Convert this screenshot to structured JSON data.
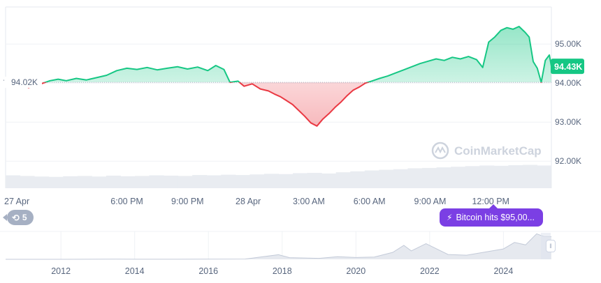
{
  "chart_data": [
    {
      "type": "area",
      "baseline": 94.02,
      "baseline_label": "94.02K",
      "current_label": "94.43K",
      "y_ticks": [
        "95.00K",
        "94.00K",
        "93.00K",
        "92.00K"
      ],
      "y_tick_values": [
        95.0,
        94.0,
        93.0,
        92.0
      ],
      "ylim": [
        91.45,
        95.95
      ],
      "x_ticks": [
        "27 Apr",
        "6:00 PM",
        "9:00 PM",
        "28 Apr",
        "3:00 AM",
        "6:00 AM",
        "9:00 AM",
        "12:00 PM"
      ],
      "x_tick_values": [
        12,
        18,
        21,
        24,
        27,
        30,
        33,
        36
      ],
      "xlim": [
        12,
        39
      ],
      "series": [
        {
          "x": [
            13.1,
            13.4,
            13.8,
            14.2,
            14.6,
            15.0,
            15.5,
            16.0,
            16.5,
            17.0,
            17.5,
            18.0,
            18.5,
            19.0,
            19.5,
            20.0,
            20.5,
            21.0,
            21.5,
            22.0,
            22.4,
            22.8,
            23.1,
            23.5,
            23.8,
            24.2,
            24.6,
            25.0,
            25.3,
            25.6,
            25.9,
            26.2,
            26.5,
            26.8,
            27.1,
            27.4,
            27.7,
            28.0,
            28.3,
            28.6,
            28.9,
            29.2,
            29.5,
            29.8,
            30.1,
            30.5,
            30.9,
            31.3,
            31.7,
            32.1,
            32.5,
            32.9,
            33.3,
            33.7,
            34.1,
            34.5,
            34.9,
            35.3,
            35.6,
            35.9,
            36.2,
            36.5,
            36.8,
            37.1,
            37.4,
            37.7,
            37.9,
            38.1,
            38.3,
            38.5,
            38.7,
            38.9,
            39.0
          ],
          "y": [
            93.88,
            93.92,
            93.99,
            94.06,
            94.1,
            94.06,
            94.12,
            94.08,
            94.14,
            94.2,
            94.32,
            94.38,
            94.35,
            94.4,
            94.34,
            94.38,
            94.42,
            94.36,
            94.41,
            94.32,
            94.45,
            94.35,
            94.02,
            94.05,
            93.92,
            93.98,
            93.85,
            93.8,
            93.72,
            93.65,
            93.55,
            93.45,
            93.3,
            93.15,
            92.98,
            92.9,
            93.08,
            93.22,
            93.38,
            93.52,
            93.68,
            93.82,
            93.9,
            94.0,
            94.05,
            94.12,
            94.18,
            94.26,
            94.34,
            94.42,
            94.5,
            94.56,
            94.62,
            94.58,
            94.66,
            94.62,
            94.68,
            94.6,
            94.4,
            95.05,
            95.18,
            95.35,
            95.42,
            95.38,
            95.45,
            95.3,
            95.18,
            94.55,
            94.38,
            94.02,
            94.58,
            94.72,
            94.43
          ]
        }
      ],
      "volume": [
        0.42,
        0.4,
        0.38,
        0.37,
        0.39,
        0.4,
        0.38,
        0.41,
        0.39,
        0.4,
        0.42,
        0.41,
        0.4,
        0.43,
        0.42,
        0.44,
        0.43,
        0.45,
        0.47,
        0.46,
        0.49,
        0.5,
        0.48,
        0.52,
        0.55,
        0.58,
        0.6,
        0.62,
        0.65,
        0.66,
        0.68,
        0.7,
        0.72,
        0.74,
        0.73,
        0.75,
        0.76,
        0.74
      ],
      "watermark": "CoinMarketCap"
    },
    {
      "type": "area",
      "x_ticks": [
        "2012",
        "2014",
        "2016",
        "2018",
        "2020",
        "2022",
        "2024"
      ],
      "x_tick_values": [
        2012,
        2014,
        2016,
        2018,
        2020,
        2022,
        2024
      ],
      "xlim": [
        2010.5,
        2025.3
      ],
      "series": [
        {
          "x": [
            2010.5,
            2012,
            2013.5,
            2014,
            2015,
            2016,
            2017,
            2017.9,
            2018.2,
            2019,
            2019.5,
            2020,
            2020.5,
            2021.0,
            2021.3,
            2021.5,
            2021.9,
            2022.5,
            2023.0,
            2023.5,
            2024.0,
            2024.3,
            2024.6,
            2024.9,
            2025.1,
            2025.3
          ],
          "y": [
            0,
            0,
            1000,
            400,
            300,
            600,
            1200,
            19000,
            7000,
            4000,
            11000,
            7500,
            9500,
            29000,
            58000,
            35000,
            65000,
            20000,
            17000,
            30000,
            43000,
            70000,
            60000,
            106000,
            95000,
            94000
          ]
        }
      ],
      "ylim": [
        0,
        110000
      ]
    }
  ],
  "history": {
    "count": "5",
    "icon": "history-icon"
  },
  "news": {
    "label": "Bitcoin hits $95,00...",
    "icon": "bolt-icon"
  },
  "colors": {
    "up": "#16c784",
    "down": "#ea3943",
    "label_bg": "#16c784",
    "badge": "#7b3fe4"
  }
}
